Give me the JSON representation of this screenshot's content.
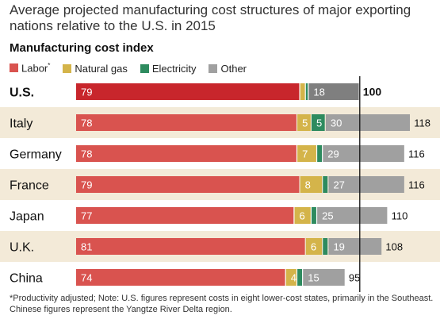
{
  "chart_data": {
    "type": "bar",
    "stacked": true,
    "orientation": "horizontal",
    "title": "Average projected manufacturing cost structures of major exporting nations relative to the U.S. in 2015",
    "subtitle": "Manufacturing cost index",
    "reference_line": 100,
    "categories": [
      "U.S.",
      "Italy",
      "Germany",
      "France",
      "Japan",
      "U.K.",
      "China"
    ],
    "totals": [
      100,
      118,
      116,
      116,
      110,
      108,
      95
    ],
    "series": [
      {
        "name": "Labor",
        "marker": "*",
        "color": "#d9534f",
        "highlight_color": "#c8262c",
        "values": [
          79,
          78,
          78,
          79,
          77,
          81,
          74
        ]
      },
      {
        "name": "Natural gas",
        "color": "#d4b44a",
        "values": [
          2,
          5,
          7,
          8,
          6,
          6,
          4
        ]
      },
      {
        "name": "Electricity",
        "color": "#2e8b5f",
        "values": [
          1,
          5,
          2,
          2,
          2,
          2,
          2
        ]
      },
      {
        "name": "Other",
        "color": "#a0a0a0",
        "highlight_color": "#7f7f7f",
        "values": [
          18,
          30,
          29,
          27,
          25,
          19,
          15
        ]
      }
    ],
    "xlim": [
      0,
      125
    ],
    "legend_position": "top-left"
  },
  "footnote": "*Productivity adjusted; Note: U.S. figures represent costs in eight lower-cost states, primarily in the Southeast. Chinese figures represent the Yangtze River Delta region."
}
